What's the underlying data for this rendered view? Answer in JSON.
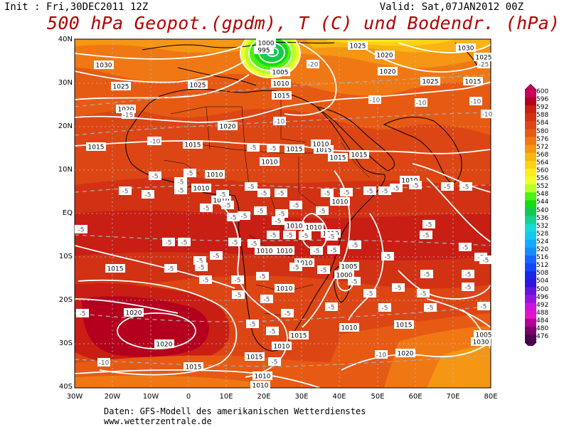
{
  "header": {
    "init": "Init : Fri,30DEC2011 12Z",
    "valid": "Valid: Sat,07JAN2012 00Z",
    "title": "500 hPa Geopot.(gpdm), T (C) und Bodendr. (hPa)"
  },
  "axes": {
    "lat_labels": [
      "40N",
      "30N",
      "20N",
      "10N",
      "EQ",
      "10S",
      "20S",
      "30S",
      "40S"
    ],
    "lon_labels": [
      "30W",
      "20W",
      "10W",
      "0",
      "10E",
      "20E",
      "30E",
      "40E",
      "50E",
      "60E",
      "70E",
      "80E"
    ]
  },
  "legend": {
    "values": [
      "600",
      "596",
      "592",
      "588",
      "584",
      "580",
      "576",
      "572",
      "568",
      "564",
      "560",
      "556",
      "552",
      "548",
      "544",
      "540",
      "536",
      "532",
      "528",
      "524",
      "520",
      "516",
      "512",
      "508",
      "504",
      "500",
      "496",
      "492",
      "488",
      "484",
      "480",
      "476"
    ],
    "colors": [
      "#c8005a",
      "#b4001e",
      "#c81e14",
      "#d23214",
      "#dc4614",
      "#e65a14",
      "#f07814",
      "#f59614",
      "#fab414",
      "#ffd214",
      "#ffeb1e",
      "#f0ff28",
      "#b4ff28",
      "#50f014",
      "#14dc14",
      "#14c850",
      "#14d296",
      "#14dcd2",
      "#14c8f0",
      "#14aaff",
      "#148cff",
      "#1464ff",
      "#1446ff",
      "#1428e6",
      "#3214dc",
      "#6414dc",
      "#9614dc",
      "#c814dc",
      "#e614c8",
      "#b40096",
      "#7a006e",
      "#500050"
    ]
  },
  "isobar_labels": [
    "1000",
    "995",
    "1005",
    "1010",
    "1015",
    "1020",
    "1025",
    "1030"
  ],
  "temp_labels": [
    "-5",
    "-10",
    "-15",
    "-20",
    "-25"
  ],
  "footer": {
    "line1": "Daten: GFS-Modell des amerikanischen Wetterdienstes",
    "line2": "www.wetterzentrale.de"
  }
}
